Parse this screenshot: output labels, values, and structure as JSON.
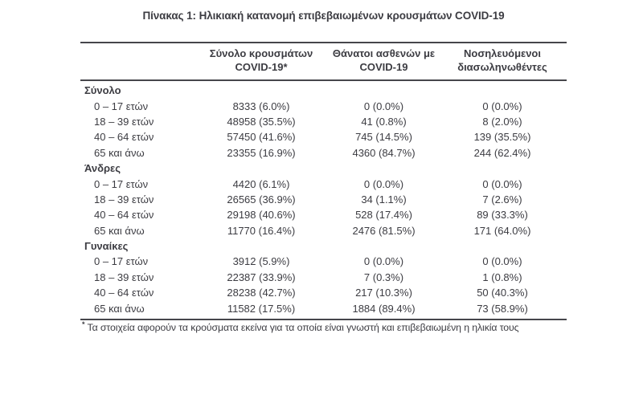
{
  "title": "Πίνακας 1: Ηλικιακή κατανομή επιβεβαιωμένων κρουσμάτων COVID-19",
  "table": {
    "columns": [
      {
        "line1": "Σύνολο κρουσμάτων",
        "line2": "COVID-19*"
      },
      {
        "line1": "Θάνατοι ασθενών με",
        "line2": "COVID-19"
      },
      {
        "line1": "Νοσηλευόμενοι",
        "line2": "διασωληνωθέντες"
      }
    ],
    "groups": [
      {
        "label": "Σύνολο",
        "rows": [
          {
            "age": "0 – 17 ετών",
            "cases": "8333 (6.0%)",
            "deaths": "0 (0.0%)",
            "intubated": "0 (0.0%)"
          },
          {
            "age": "18 – 39 ετών",
            "cases": "48958 (35.5%)",
            "deaths": "41 (0.8%)",
            "intubated": "8 (2.0%)"
          },
          {
            "age": "40 – 64 ετών",
            "cases": "57450 (41.6%)",
            "deaths": "745 (14.5%)",
            "intubated": "139 (35.5%)"
          },
          {
            "age": "65 και άνω",
            "cases": "23355 (16.9%)",
            "deaths": "4360 (84.7%)",
            "intubated": "244 (62.4%)"
          }
        ]
      },
      {
        "label": "Άνδρες",
        "rows": [
          {
            "age": "0 – 17 ετών",
            "cases": "4420 (6.1%)",
            "deaths": "0 (0.0%)",
            "intubated": "0 (0.0%)"
          },
          {
            "age": "18 – 39 ετών",
            "cases": "26565 (36.9%)",
            "deaths": "34 (1.1%)",
            "intubated": "7 (2.6%)"
          },
          {
            "age": "40 – 64 ετών",
            "cases": "29198 (40.6%)",
            "deaths": "528 (17.4%)",
            "intubated": "89 (33.3%)"
          },
          {
            "age": "65 και άνω",
            "cases": "11770 (16.4%)",
            "deaths": "2476 (81.5%)",
            "intubated": "171 (64.0%)"
          }
        ]
      },
      {
        "label": "Γυναίκες",
        "rows": [
          {
            "age": "0 – 17 ετών",
            "cases": "3912 (5.9%)",
            "deaths": "0 (0.0%)",
            "intubated": "0 (0.0%)"
          },
          {
            "age": "18 – 39 ετών",
            "cases": "22387 (33.9%)",
            "deaths": "7 (0.3%)",
            "intubated": "1 (0.8%)"
          },
          {
            "age": "40 – 64 ετών",
            "cases": "28238 (42.7%)",
            "deaths": "217 (10.3%)",
            "intubated": "50 (40.3%)"
          },
          {
            "age": "65 και άνω",
            "cases": "11582 (17.5%)",
            "deaths": "1884 (89.4%)",
            "intubated": "73 (58.9%)"
          }
        ]
      }
    ]
  },
  "footnote": {
    "marker": "*",
    "text": "Τα στοιχεία αφορούν τα κρούσματα εκείνα για τα οποία είναι γνωστή και επιβεβαιωμένη η ηλικία τους"
  },
  "colors": {
    "text": "#3c3c42",
    "rule": "#46464b",
    "background": "#ffffff"
  }
}
